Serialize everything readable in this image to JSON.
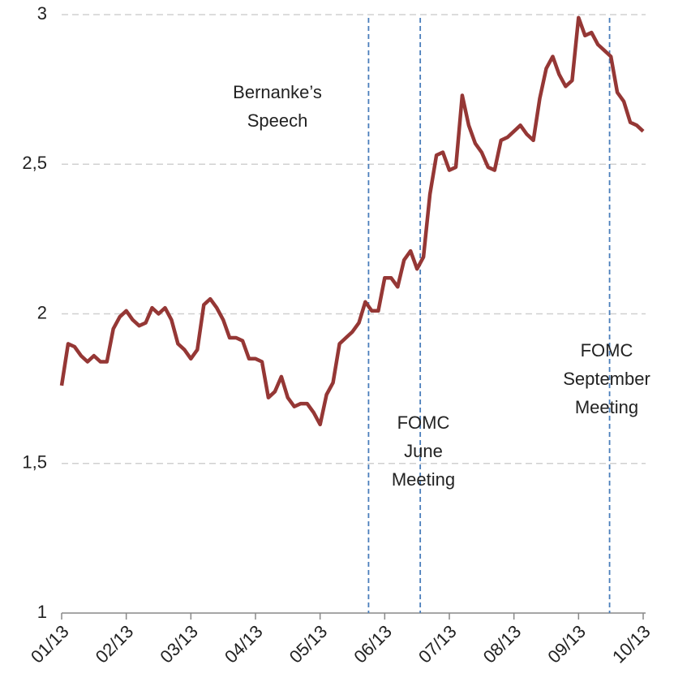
{
  "chart_data": {
    "type": "line",
    "categories": [
      "01/13",
      null,
      null,
      null,
      null,
      null,
      null,
      null,
      null,
      null,
      "02/13",
      null,
      null,
      null,
      null,
      null,
      null,
      null,
      null,
      null,
      "03/13",
      null,
      null,
      null,
      null,
      null,
      null,
      null,
      null,
      null,
      "04/13",
      null,
      null,
      null,
      null,
      null,
      null,
      null,
      null,
      null,
      "05/13",
      null,
      null,
      null,
      null,
      null,
      null,
      null,
      null,
      null,
      "06/13",
      null,
      null,
      null,
      null,
      null,
      null,
      null,
      null,
      null,
      "07/13",
      null,
      null,
      null,
      null,
      null,
      null,
      null,
      null,
      null,
      "08/13",
      null,
      null,
      null,
      null,
      null,
      null,
      null,
      null,
      null,
      "09/13",
      null,
      null,
      null,
      null,
      null,
      null,
      null,
      null,
      null,
      "10/13"
    ],
    "values": [
      1.76,
      1.9,
      1.89,
      1.86,
      1.84,
      1.86,
      1.84,
      1.84,
      1.95,
      1.99,
      2.01,
      1.98,
      1.96,
      1.97,
      2.02,
      2.0,
      2.02,
      1.98,
      1.9,
      1.88,
      1.85,
      1.88,
      2.03,
      2.05,
      2.02,
      1.98,
      1.92,
      1.92,
      1.91,
      1.85,
      1.85,
      1.84,
      1.72,
      1.74,
      1.79,
      1.72,
      1.69,
      1.7,
      1.7,
      1.67,
      1.63,
      1.73,
      1.77,
      1.9,
      1.92,
      1.94,
      1.97,
      2.04,
      2.01,
      2.01,
      2.12,
      2.12,
      2.09,
      2.18,
      2.21,
      2.15,
      2.19,
      2.4,
      2.53,
      2.54,
      2.48,
      2.49,
      2.73,
      2.63,
      2.57,
      2.54,
      2.49,
      2.48,
      2.58,
      2.59,
      2.61,
      2.63,
      2.6,
      2.58,
      2.72,
      2.82,
      2.86,
      2.8,
      2.76,
      2.78,
      2.99,
      2.93,
      2.94,
      2.9,
      2.88,
      2.86,
      2.74,
      2.71,
      2.64,
      2.63,
      2.61
    ],
    "color": "#953735",
    "ylim": [
      1,
      3
    ],
    "yticks": [
      1,
      {
        "value": 1.5,
        "label": "1,5"
      },
      2,
      {
        "value": 2.5,
        "label": "2,5"
      },
      3
    ],
    "grid": true,
    "vlines": [
      {
        "at": 47.5,
        "label": [
          "Bernanke’s",
          "Speech"
        ]
      },
      {
        "at": 55.5,
        "label": [
          "FOMC",
          "June",
          "Meeting"
        ]
      },
      {
        "at": 84.8,
        "label": [
          "FOMC",
          "September",
          "Meeting"
        ]
      }
    ],
    "vline_color": "#4a7ebb"
  }
}
